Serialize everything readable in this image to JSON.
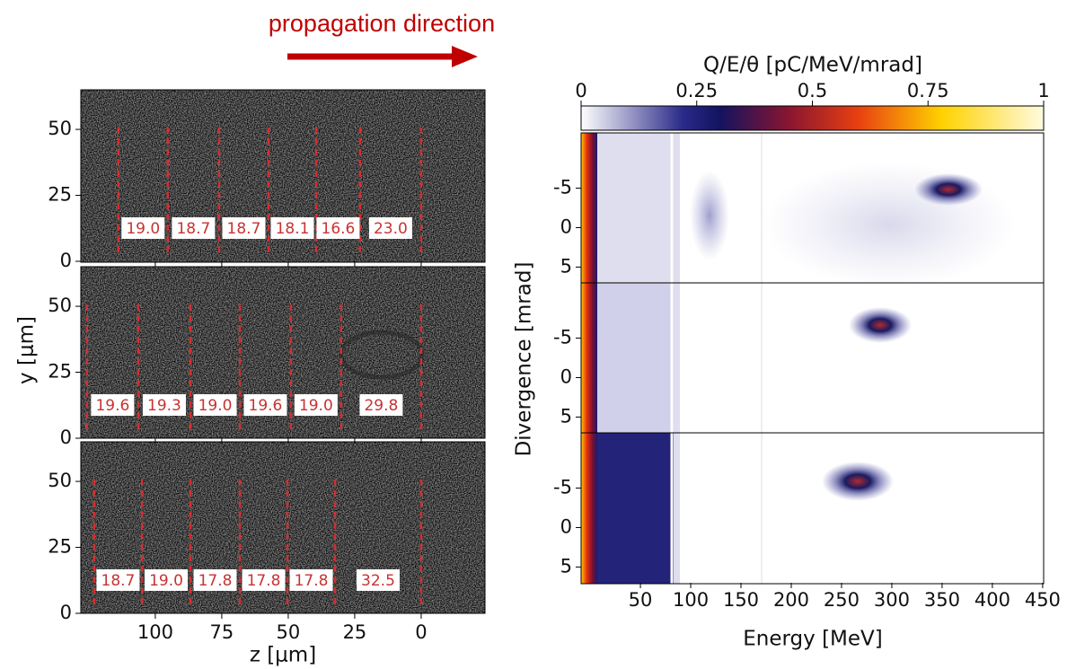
{
  "chart_data": [
    {
      "type": "image",
      "annotation": "propagation direction",
      "xlabel": "z [μm]",
      "ylabel": "y [μm]",
      "xlim": [
        128,
        -24
      ],
      "ylim": [
        0,
        65
      ],
      "xticks": [
        100,
        75,
        50,
        25,
        0
      ],
      "yticks": [
        0,
        25,
        50
      ],
      "panels": [
        {
          "cuts": [
            113.9,
            95.3,
            76,
            57.4,
            39.5,
            23,
            0
          ],
          "values": [
            19.0,
            18.7,
            18.7,
            18.1,
            16.6,
            23.0
          ],
          "value_labels": [
            "19.0",
            "18.7",
            "18.7",
            "18.1",
            "16.6",
            "23.0"
          ]
        },
        {
          "cuts": [
            125.7,
            106.4,
            86.8,
            68.2,
            49,
            30.1,
            0
          ],
          "values": [
            19.6,
            19.3,
            19.0,
            19.6,
            19.0,
            29.8
          ],
          "value_labels": [
            "19.6",
            "19.3",
            "19.0",
            "19.6",
            "19.0",
            "29.8"
          ]
        },
        {
          "cuts": [
            123,
            105,
            86.8,
            68.2,
            50.3,
            32.4,
            0
          ],
          "values": [
            18.7,
            19.0,
            17.8,
            17.8,
            17.8,
            32.5
          ],
          "value_labels": [
            "18.7",
            "19.0",
            "17.8",
            "17.8",
            "17.8",
            "32.5"
          ]
        }
      ]
    },
    {
      "type": "image",
      "colorbar_label": "Q/E/θ [pC/MeV/mrad]",
      "clim": [
        0,
        1
      ],
      "cticks": [
        0,
        0.25,
        {
          "value": 0.5,
          "label": "0.5"
        },
        0.75,
        1
      ],
      "xlabel": "Energy [MeV]",
      "ylabel": "Divergence [mrad]",
      "xlim": [
        -9,
        451
      ],
      "ylim": [
        -12,
        7
      ],
      "xticks": [
        50,
        100,
        150,
        200,
        250,
        300,
        350,
        400,
        450
      ],
      "yticks": [
        -5,
        0,
        5
      ]
    }
  ]
}
